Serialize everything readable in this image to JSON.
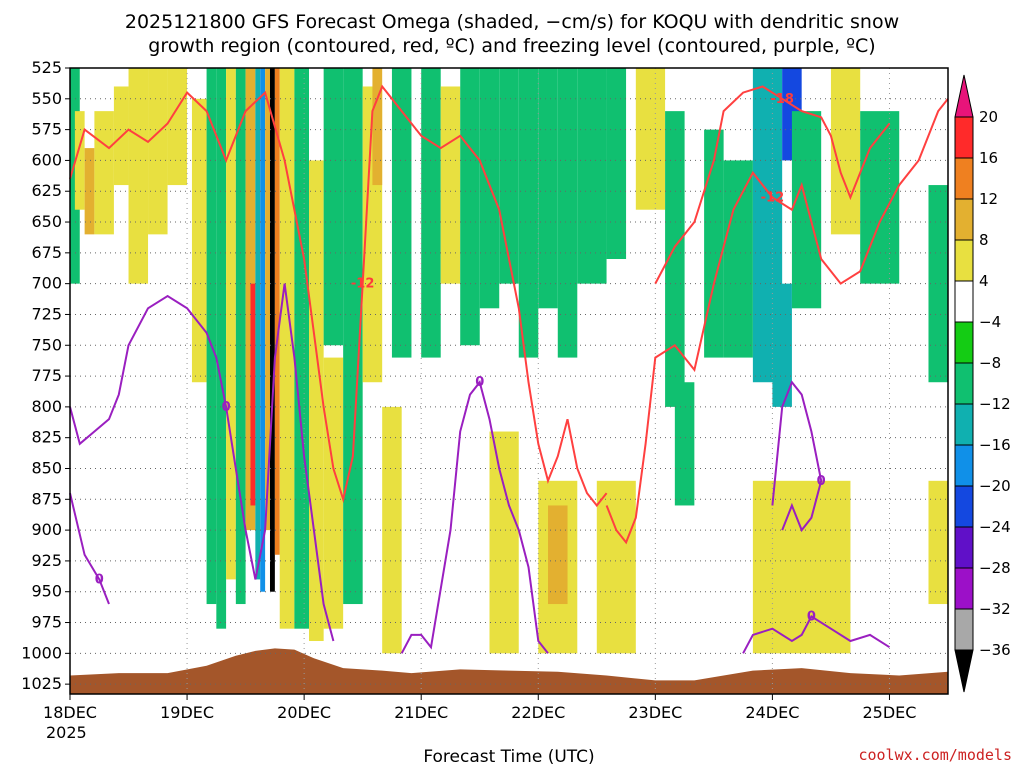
{
  "chart_data": {
    "type": "heatmap",
    "title_line1": "2025121800 GFS Forecast Omega (shaded, −cm/s) for KOQU with dendritic snow",
    "title_line2": "growth region (contoured, red, ºC) and freezing level (contoured, purple, ºC)",
    "xlabel": "Forecast Time (UTC)",
    "credit": "coolwx.com/models",
    "x_ticks": [
      {
        "label": "18DEC",
        "hours": 0
      },
      {
        "label": "19DEC",
        "hours": 24
      },
      {
        "label": "20DEC",
        "hours": 48
      },
      {
        "label": "21DEC",
        "hours": 72
      },
      {
        "label": "22DEC",
        "hours": 96
      },
      {
        "label": "23DEC",
        "hours": 120
      },
      {
        "label": "24DEC",
        "hours": 144
      },
      {
        "label": "25DEC",
        "hours": 168
      }
    ],
    "x_year_label": "2025",
    "x_range_hours": [
      0,
      180
    ],
    "y_ticks": [
      525,
      550,
      575,
      600,
      625,
      650,
      675,
      700,
      725,
      750,
      775,
      800,
      825,
      850,
      875,
      900,
      925,
      950,
      975,
      1000,
      1025
    ],
    "y_range_hpa": [
      525,
      1033
    ],
    "colorbar_labels": [
      "20",
      "16",
      "12",
      "8",
      "4",
      "−4",
      "−8",
      "−12",
      "−16",
      "−20",
      "−24",
      "−28",
      "−32",
      "−36"
    ],
    "colorbar_colors": [
      "#ff2a2a",
      "#ef8020",
      "#e3b030",
      "#e8e040",
      "#ffffff",
      "#14cc14",
      "#10c070",
      "#10b0b0",
      "#1090e8",
      "#1448e0",
      "#6010c8",
      "#9c10c8",
      "#a8a8a8"
    ],
    "colorbar_top_color": "#e8147a",
    "colorbar_bottom_color": "#000000",
    "omega_cells": [
      {
        "t0": 0,
        "t1": 2,
        "p0": 525,
        "p1": 700,
        "v": -9
      },
      {
        "t0": 1,
        "t1": 3,
        "p0": 560,
        "p1": 640,
        "v": 6
      },
      {
        "t0": 3,
        "t1": 5,
        "p0": 590,
        "p1": 660,
        "v": 9
      },
      {
        "t0": 5,
        "t1": 9,
        "p0": 560,
        "p1": 660,
        "v": 5
      },
      {
        "t0": 9,
        "t1": 12,
        "p0": 540,
        "p1": 620,
        "v": 6
      },
      {
        "t0": 12,
        "t1": 16,
        "p0": 525,
        "p1": 700,
        "v": 5
      },
      {
        "t0": 16,
        "t1": 20,
        "p0": 525,
        "p1": 660,
        "v": 6
      },
      {
        "t0": 20,
        "t1": 24,
        "p0": 525,
        "p1": 620,
        "v": 5
      },
      {
        "t0": 25,
        "t1": 28,
        "p0": 550,
        "p1": 780,
        "v": 5
      },
      {
        "t0": 28,
        "t1": 30,
        "p0": 525,
        "p1": 960,
        "v": -8
      },
      {
        "t0": 30,
        "t1": 32,
        "p0": 525,
        "p1": 980,
        "v": -10
      },
      {
        "t0": 32,
        "t1": 34,
        "p0": 525,
        "p1": 940,
        "v": 6
      },
      {
        "t0": 34,
        "t1": 36,
        "p0": 525,
        "p1": 960,
        "v": -9
      },
      {
        "t0": 36,
        "t1": 38,
        "p0": 525,
        "p1": 900,
        "v": 9
      },
      {
        "t0": 37,
        "t1": 38,
        "p0": 700,
        "p1": 880,
        "v": 18
      },
      {
        "t0": 38,
        "t1": 39,
        "p0": 525,
        "p1": 940,
        "v": -14
      },
      {
        "t0": 39,
        "t1": 40,
        "p0": 525,
        "p1": 950,
        "v": -18
      },
      {
        "t0": 40,
        "t1": 41,
        "p0": 525,
        "p1": 900,
        "v": 10
      },
      {
        "t0": 41,
        "t1": 42,
        "p0": 525,
        "p1": 950,
        "v": -40
      },
      {
        "t0": 42,
        "t1": 43,
        "p0": 525,
        "p1": 920,
        "v": 14
      },
      {
        "t0": 43,
        "t1": 46,
        "p0": 525,
        "p1": 980,
        "v": 6
      },
      {
        "t0": 46,
        "t1": 49,
        "p0": 525,
        "p1": 980,
        "v": -9
      },
      {
        "t0": 49,
        "t1": 52,
        "p0": 600,
        "p1": 990,
        "v": 6
      },
      {
        "t0": 52,
        "t1": 56,
        "p0": 525,
        "p1": 750,
        "v": -9
      },
      {
        "t0": 52,
        "t1": 56,
        "p0": 760,
        "p1": 980,
        "v": 7
      },
      {
        "t0": 56,
        "t1": 60,
        "p0": 525,
        "p1": 960,
        "v": -8
      },
      {
        "t0": 60,
        "t1": 64,
        "p0": 540,
        "p1": 780,
        "v": 6
      },
      {
        "t0": 62,
        "t1": 64,
        "p0": 525,
        "p1": 620,
        "v": 10
      },
      {
        "t0": 64,
        "t1": 68,
        "p0": 800,
        "p1": 1000,
        "v": 6
      },
      {
        "t0": 66,
        "t1": 70,
        "p0": 525,
        "p1": 760,
        "v": -9
      },
      {
        "t0": 72,
        "t1": 76,
        "p0": 525,
        "p1": 760,
        "v": -9
      },
      {
        "t0": 76,
        "t1": 80,
        "p0": 540,
        "p1": 700,
        "v": 5
      },
      {
        "t0": 80,
        "t1": 84,
        "p0": 525,
        "p1": 750,
        "v": -9
      },
      {
        "t0": 84,
        "t1": 88,
        "p0": 525,
        "p1": 720,
        "v": -10
      },
      {
        "t0": 86,
        "t1": 92,
        "p0": 820,
        "p1": 1000,
        "v": 6
      },
      {
        "t0": 88,
        "t1": 92,
        "p0": 525,
        "p1": 700,
        "v": -9
      },
      {
        "t0": 92,
        "t1": 96,
        "p0": 525,
        "p1": 760,
        "v": -10
      },
      {
        "t0": 96,
        "t1": 100,
        "p0": 525,
        "p1": 720,
        "v": -9
      },
      {
        "t0": 96,
        "t1": 104,
        "p0": 860,
        "p1": 1000,
        "v": 6
      },
      {
        "t0": 98,
        "t1": 102,
        "p0": 880,
        "p1": 960,
        "v": 9
      },
      {
        "t0": 100,
        "t1": 104,
        "p0": 525,
        "p1": 760,
        "v": -8
      },
      {
        "t0": 104,
        "t1": 110,
        "p0": 525,
        "p1": 700,
        "v": -9
      },
      {
        "t0": 108,
        "t1": 116,
        "p0": 860,
        "p1": 1000,
        "v": 6
      },
      {
        "t0": 110,
        "t1": 114,
        "p0": 525,
        "p1": 680,
        "v": -8
      },
      {
        "t0": 116,
        "t1": 122,
        "p0": 525,
        "p1": 640,
        "v": 5
      },
      {
        "t0": 122,
        "t1": 126,
        "p0": 560,
        "p1": 800,
        "v": -8
      },
      {
        "t0": 124,
        "t1": 128,
        "p0": 780,
        "p1": 880,
        "v": -9
      },
      {
        "t0": 130,
        "t1": 134,
        "p0": 575,
        "p1": 760,
        "v": -8
      },
      {
        "t0": 134,
        "t1": 140,
        "p0": 600,
        "p1": 760,
        "v": -11
      },
      {
        "t0": 140,
        "t1": 146,
        "p0": 525,
        "p1": 780,
        "v": -12
      },
      {
        "t0": 144,
        "t1": 148,
        "p0": 700,
        "p1": 800,
        "v": -15
      },
      {
        "t0": 146,
        "t1": 150,
        "p0": 525,
        "p1": 600,
        "v": -20
      },
      {
        "t0": 148,
        "t1": 154,
        "p0": 560,
        "p1": 720,
        "v": -10
      },
      {
        "t0": 156,
        "t1": 162,
        "p0": 525,
        "p1": 660,
        "v": 5
      },
      {
        "t0": 162,
        "t1": 170,
        "p0": 560,
        "p1": 700,
        "v": -9
      },
      {
        "t0": 176,
        "t1": 180,
        "p0": 620,
        "p1": 780,
        "v": -10
      },
      {
        "t0": 140,
        "t1": 160,
        "p0": 860,
        "p1": 1000,
        "v": 6
      },
      {
        "t0": 176,
        "t1": 180,
        "p0": 860,
        "p1": 960,
        "v": 6
      }
    ],
    "contours_red": [
      {
        "label": "-12",
        "points": [
          [
            0,
            615
          ],
          [
            3,
            575
          ],
          [
            8,
            590
          ],
          [
            12,
            575
          ],
          [
            16,
            585
          ],
          [
            20,
            570
          ],
          [
            24,
            545
          ],
          [
            28,
            560
          ],
          [
            32,
            600
          ],
          [
            36,
            560
          ],
          [
            40,
            545
          ],
          [
            44,
            600
          ],
          [
            48,
            680
          ],
          [
            50,
            740
          ],
          [
            52,
            800
          ],
          [
            54,
            850
          ],
          [
            56,
            875
          ],
          [
            58,
            840
          ],
          [
            60,
            700
          ],
          [
            62,
            560
          ],
          [
            64,
            540
          ],
          [
            68,
            560
          ],
          [
            72,
            580
          ],
          [
            76,
            590
          ],
          [
            80,
            580
          ],
          [
            84,
            600
          ],
          [
            88,
            640
          ],
          [
            92,
            720
          ],
          [
            94,
            780
          ],
          [
            96,
            830
          ],
          [
            98,
            860
          ],
          [
            100,
            840
          ],
          [
            102,
            810
          ],
          [
            104,
            850
          ],
          [
            106,
            870
          ],
          [
            108,
            880
          ],
          [
            110,
            870
          ]
        ]
      },
      {
        "label": "-12",
        "points": [
          [
            110,
            880
          ],
          [
            112,
            900
          ],
          [
            114,
            910
          ],
          [
            116,
            890
          ],
          [
            118,
            830
          ],
          [
            120,
            760
          ],
          [
            124,
            750
          ],
          [
            128,
            770
          ],
          [
            132,
            700
          ],
          [
            136,
            640
          ],
          [
            140,
            610
          ],
          [
            144,
            630
          ],
          [
            148,
            640
          ],
          [
            150,
            620
          ],
          [
            154,
            680
          ],
          [
            158,
            700
          ],
          [
            162,
            690
          ],
          [
            166,
            650
          ],
          [
            170,
            620
          ],
          [
            174,
            600
          ],
          [
            178,
            560
          ],
          [
            180,
            550
          ]
        ]
      },
      {
        "label": "-18",
        "points": [
          [
            120,
            700
          ],
          [
            124,
            670
          ],
          [
            128,
            650
          ],
          [
            132,
            600
          ],
          [
            134,
            560
          ],
          [
            138,
            545
          ],
          [
            142,
            540
          ],
          [
            146,
            550
          ],
          [
            150,
            560
          ],
          [
            154,
            565
          ],
          [
            156,
            580
          ],
          [
            158,
            610
          ],
          [
            160,
            630
          ],
          [
            164,
            590
          ],
          [
            168,
            570
          ]
        ]
      }
    ],
    "contours_purple": [
      {
        "label": "0",
        "points": [
          [
            0,
            800
          ],
          [
            2,
            830
          ],
          [
            5,
            820
          ],
          [
            8,
            810
          ],
          [
            10,
            790
          ],
          [
            12,
            750
          ],
          [
            16,
            720
          ],
          [
            20,
            710
          ],
          [
            24,
            720
          ],
          [
            28,
            740
          ],
          [
            30,
            760
          ],
          [
            32,
            800
          ],
          [
            34,
            850
          ],
          [
            36,
            900
          ],
          [
            38,
            940
          ],
          [
            40,
            900
          ],
          [
            42,
            760
          ],
          [
            44,
            700
          ],
          [
            46,
            760
          ],
          [
            48,
            840
          ],
          [
            50,
            900
          ],
          [
            52,
            960
          ],
          [
            54,
            990
          ]
        ]
      },
      {
        "label": "0",
        "points": [
          [
            0,
            870
          ],
          [
            3,
            920
          ],
          [
            6,
            940
          ],
          [
            8,
            960
          ]
        ]
      },
      {
        "label": "0",
        "points": [
          [
            68,
            1000
          ],
          [
            70,
            985
          ],
          [
            72,
            985
          ],
          [
            74,
            995
          ],
          [
            78,
            900
          ],
          [
            80,
            820
          ],
          [
            82,
            790
          ],
          [
            84,
            780
          ],
          [
            86,
            810
          ],
          [
            88,
            850
          ],
          [
            90,
            880
          ],
          [
            92,
            900
          ],
          [
            94,
            930
          ],
          [
            96,
            990
          ],
          [
            98,
            1000
          ]
        ]
      },
      {
        "label": "0",
        "points": [
          [
            138,
            1000
          ],
          [
            140,
            985
          ],
          [
            144,
            980
          ],
          [
            148,
            990
          ],
          [
            150,
            985
          ],
          [
            152,
            970
          ],
          [
            156,
            980
          ],
          [
            160,
            990
          ],
          [
            164,
            985
          ],
          [
            168,
            995
          ]
        ]
      },
      {
        "label": "0",
        "points": [
          [
            144,
            880
          ],
          [
            146,
            800
          ],
          [
            148,
            780
          ],
          [
            150,
            790
          ],
          [
            152,
            820
          ],
          [
            154,
            860
          ],
          [
            152,
            890
          ],
          [
            150,
            900
          ],
          [
            148,
            880
          ],
          [
            146,
            900
          ]
        ]
      }
    ]
  }
}
